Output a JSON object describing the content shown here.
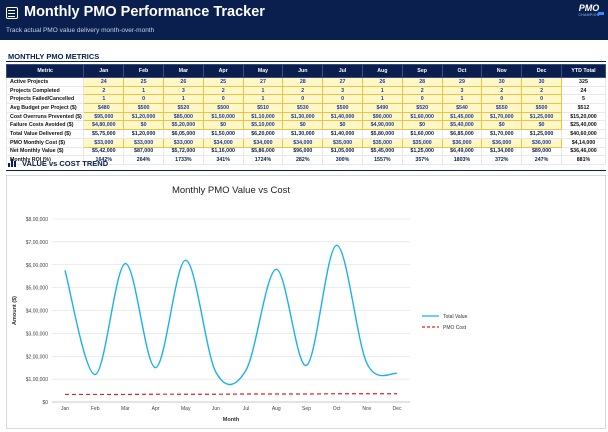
{
  "header": {
    "title": "Monthly PMO Performance Tracker",
    "subtitle": "Track actual PMO value delivery month-over-month",
    "logo_main": "PMO",
    "logo_sub": "CHAMPION"
  },
  "metrics": {
    "section_title": "MONTHLY PMO METRICS",
    "columns": [
      "Metric",
      "Jan",
      "Feb",
      "Mar",
      "Apr",
      "May",
      "Jun",
      "Jul",
      "Aug",
      "Sep",
      "Oct",
      "Nov",
      "Dec",
      "YTD Total"
    ],
    "rows": [
      {
        "label": "Active Projects",
        "values": [
          "24",
          "25",
          "26",
          "25",
          "27",
          "28",
          "27",
          "26",
          "28",
          "29",
          "30",
          "30"
        ],
        "total": "325",
        "input": true
      },
      {
        "label": "Projects Completed",
        "values": [
          "2",
          "1",
          "3",
          "2",
          "1",
          "2",
          "3",
          "1",
          "2",
          "3",
          "2",
          "2"
        ],
        "total": "24",
        "input": true
      },
      {
        "label": "Projects Failed/Cancelled",
        "values": [
          "1",
          "0",
          "1",
          "0",
          "1",
          "0",
          "0",
          "1",
          "0",
          "1",
          "0",
          "0"
        ],
        "total": "5",
        "input": true
      },
      {
        "label": "Avg Budget per Project ($)",
        "values": [
          "$480",
          "$500",
          "$520",
          "$500",
          "$510",
          "$530",
          "$500",
          "$490",
          "$520",
          "$540",
          "$550",
          "$500"
        ],
        "total": "$512",
        "input": true
      },
      {
        "label": "Cost Overruns Prevented ($)",
        "values": [
          "$95,000",
          "$1,20,000",
          "$85,000",
          "$1,50,000",
          "$1,10,000",
          "$1,30,000",
          "$1,40,000",
          "$90,000",
          "$1,60,000",
          "$1,45,000",
          "$1,70,000",
          "$1,25,000"
        ],
        "total": "$15,20,000",
        "input": true
      },
      {
        "label": "Failure Costs Avoided ($)",
        "values": [
          "$4,80,000",
          "$0",
          "$5,20,000",
          "$0",
          "$5,10,000",
          "$0",
          "$0",
          "$4,90,000",
          "$0",
          "$5,40,000",
          "$0",
          "$0"
        ],
        "total": "$25,40,000",
        "input": true
      },
      {
        "label": "Total Value Delivered ($)",
        "values": [
          "$5,75,000",
          "$1,20,000",
          "$6,05,000",
          "$1,50,000",
          "$6,20,000",
          "$1,30,000",
          "$1,40,000",
          "$5,80,000",
          "$1,60,000",
          "$6,85,000",
          "$1,70,000",
          "$1,25,000"
        ],
        "total": "$40,60,000",
        "input": false
      },
      {
        "label": "PMO Monthly Cost ($)",
        "values": [
          "$33,000",
          "$33,000",
          "$33,000",
          "$34,000",
          "$34,000",
          "$34,000",
          "$35,000",
          "$35,000",
          "$35,000",
          "$36,000",
          "$36,000",
          "$36,000"
        ],
        "total": "$4,14,000",
        "input": true
      },
      {
        "label": "Net Monthly Value ($)",
        "values": [
          "$5,42,000",
          "$87,000",
          "$5,72,000",
          "$1,16,000",
          "$5,86,000",
          "$96,000",
          "$1,05,000",
          "$5,45,000",
          "$1,25,000",
          "$6,49,000",
          "$1,34,000",
          "$89,000"
        ],
        "total": "$36,46,000",
        "input": false
      },
      {
        "label": "Monthly ROI (%)",
        "values": [
          "1642%",
          "264%",
          "1733%",
          "341%",
          "1724%",
          "282%",
          "300%",
          "1557%",
          "357%",
          "1803%",
          "372%",
          "247%"
        ],
        "total": "881%",
        "input": false
      }
    ]
  },
  "chart_section": {
    "title": "VALUE vs COST TREND"
  },
  "chart_data": {
    "type": "line",
    "title": "Monthly PMO Value vs Cost",
    "xlabel": "Month",
    "ylabel": "Amount ($)",
    "categories": [
      "Jan",
      "Feb",
      "Mar",
      "Apr",
      "May",
      "Jun",
      "Jul",
      "Aug",
      "Sep",
      "Oct",
      "Nov",
      "Dec"
    ],
    "y_ticks": [
      "$0",
      "$1,00,000",
      "$2,00,000",
      "$3,00,000",
      "$4,00,000",
      "$5,00,000",
      "$6,00,000",
      "$7,00,000",
      "$8,00,000"
    ],
    "ylim": [
      0,
      800000
    ],
    "grid": true,
    "legend": "right",
    "series": [
      {
        "name": "Total Value",
        "color": "#1ab0f0",
        "style": "solid",
        "values": [
          575000,
          120000,
          605000,
          150000,
          620000,
          130000,
          140000,
          580000,
          160000,
          685000,
          170000,
          125000
        ]
      },
      {
        "name": "PMO Cost",
        "color": "#e02020",
        "style": "dashed",
        "values": [
          33000,
          33000,
          33000,
          34000,
          34000,
          34000,
          35000,
          35000,
          35000,
          36000,
          36000,
          36000
        ]
      }
    ]
  }
}
